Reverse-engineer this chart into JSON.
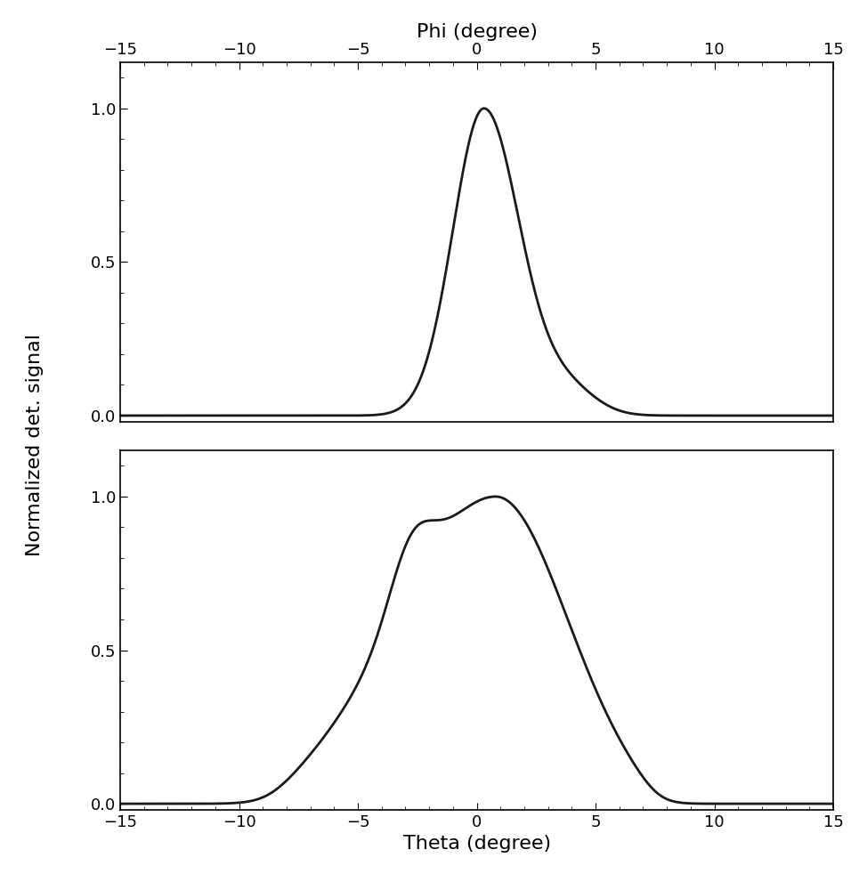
{
  "top_xlabel": "Phi (degree)",
  "bottom_xlabel": "Theta (degree)",
  "ylabel": "Normalized det. signal",
  "xlim": [
    -15,
    15
  ],
  "ylim": [
    -0.02,
    1.15
  ],
  "yticks": [
    0.0,
    0.5,
    1.0
  ],
  "xticks": [
    -15,
    -10,
    -5,
    0,
    5,
    10,
    15
  ],
  "line_color": "#1a1a1a",
  "line_width": 2.0,
  "background_color": "#ffffff",
  "fig_width": 9.65,
  "fig_height": 10.0,
  "dpi": 100
}
